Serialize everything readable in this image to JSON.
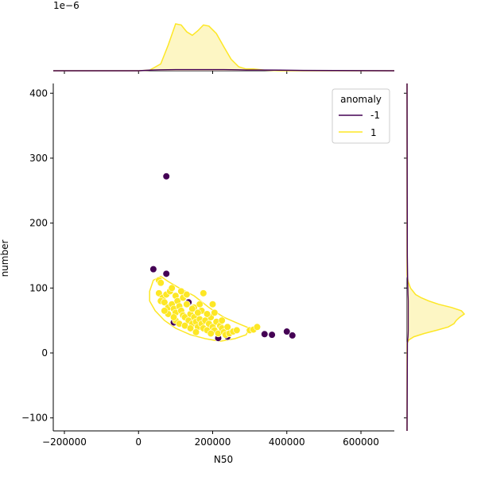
{
  "chart_data": {
    "type": "scatter",
    "xlabel": "N50",
    "ylabel": "number",
    "xlim": [
      -230000,
      690000
    ],
    "ylim": [
      -120,
      415
    ],
    "x_ticks": [
      -200000,
      0,
      200000,
      400000,
      600000
    ],
    "x_tick_labels": [
      "−200000",
      "0",
      "200000",
      "400000",
      "600000"
    ],
    "y_ticks": [
      -100,
      0,
      100,
      200,
      300,
      400
    ],
    "y_tick_labels": [
      "−100",
      "0",
      "100",
      "200",
      "300",
      "400"
    ],
    "top_marginal_scale_label": "1e−6",
    "legend": {
      "title": "anomaly",
      "placement": "top-right",
      "entries": [
        {
          "label": "-1",
          "color": "#440154"
        },
        {
          "label": "1",
          "color": "#fde725"
        }
      ]
    },
    "colors": {
      "anomaly_neg": "#440154",
      "normal": "#fde725",
      "kde_fill": "#fdf6c4"
    },
    "series": [
      {
        "name": "-1",
        "color": "#440154",
        "points": [
          [
            75000,
            272
          ],
          [
            40000,
            129
          ],
          [
            75000,
            122
          ],
          [
            340000,
            29
          ],
          [
            360000,
            28
          ],
          [
            400000,
            33
          ],
          [
            415000,
            27
          ],
          [
            215000,
            23
          ],
          [
            240000,
            25
          ],
          [
            95000,
            47
          ],
          [
            135000,
            78
          ]
        ]
      },
      {
        "name": "1",
        "color": "#fde725",
        "points": [
          [
            55000,
            112
          ],
          [
            60000,
            108
          ],
          [
            55000,
            92
          ],
          [
            65000,
            85
          ],
          [
            60000,
            80
          ],
          [
            70000,
            78
          ],
          [
            75000,
            90
          ],
          [
            80000,
            70
          ],
          [
            85000,
            95
          ],
          [
            90000,
            75
          ],
          [
            95000,
            68
          ],
          [
            100000,
            62
          ],
          [
            100000,
            88
          ],
          [
            105000,
            80
          ],
          [
            110000,
            72
          ],
          [
            115000,
            65
          ],
          [
            120000,
            58
          ],
          [
            120000,
            85
          ],
          [
            125000,
            55
          ],
          [
            130000,
            75
          ],
          [
            135000,
            50
          ],
          [
            140000,
            60
          ],
          [
            145000,
            45
          ],
          [
            150000,
            55
          ],
          [
            150000,
            70
          ],
          [
            155000,
            48
          ],
          [
            160000,
            40
          ],
          [
            165000,
            52
          ],
          [
            170000,
            45
          ],
          [
            170000,
            65
          ],
          [
            175000,
            38
          ],
          [
            175000,
            92
          ],
          [
            180000,
            50
          ],
          [
            185000,
            35
          ],
          [
            190000,
            45
          ],
          [
            195000,
            55
          ],
          [
            200000,
            40
          ],
          [
            200000,
            75
          ],
          [
            205000,
            35
          ],
          [
            210000,
            48
          ],
          [
            215000,
            30
          ],
          [
            220000,
            42
          ],
          [
            225000,
            38
          ],
          [
            230000,
            32
          ],
          [
            235000,
            28
          ],
          [
            240000,
            40
          ],
          [
            245000,
            30
          ],
          [
            255000,
            33
          ],
          [
            265000,
            35
          ],
          [
            300000,
            35
          ],
          [
            310000,
            36
          ],
          [
            320000,
            40
          ],
          [
            80000,
            60
          ],
          [
            90000,
            100
          ],
          [
            100000,
            50
          ],
          [
            110000,
            45
          ],
          [
            125000,
            42
          ],
          [
            140000,
            38
          ],
          [
            155000,
            32
          ],
          [
            160000,
            62
          ],
          [
            185000,
            60
          ],
          [
            195000,
            30
          ],
          [
            130000,
            90
          ],
          [
            70000,
            65
          ],
          [
            95000,
            55
          ],
          [
            115000,
            95
          ],
          [
            165000,
            75
          ],
          [
            205000,
            62
          ],
          [
            225000,
            50
          ],
          [
            145000,
            68
          ]
        ]
      }
    ],
    "density_contour_normal": [
      [
        30000,
        95
      ],
      [
        40000,
        112
      ],
      [
        60000,
        118
      ],
      [
        80000,
        110
      ],
      [
        110000,
        100
      ],
      [
        150000,
        88
      ],
      [
        190000,
        70
      ],
      [
        230000,
        55
      ],
      [
        270000,
        45
      ],
      [
        300000,
        38
      ],
      [
        290000,
        28
      ],
      [
        260000,
        22
      ],
      [
        220000,
        18
      ],
      [
        180000,
        22
      ],
      [
        140000,
        28
      ],
      [
        100000,
        38
      ],
      [
        70000,
        50
      ],
      [
        45000,
        65
      ],
      [
        30000,
        80
      ]
    ],
    "top_marginal": {
      "x": [
        -230000,
        0,
        30000,
        60000,
        80000,
        100000,
        115000,
        130000,
        145000,
        160000,
        175000,
        190000,
        210000,
        230000,
        250000,
        270000,
        290000,
        310000,
        340000,
        380000,
        450000,
        690000
      ],
      "density_normal": [
        0,
        0,
        0.01,
        0.12,
        0.45,
        0.82,
        0.8,
        0.68,
        0.62,
        0.7,
        0.8,
        0.78,
        0.65,
        0.42,
        0.2,
        0.07,
        0.03,
        0.03,
        0.01,
        0,
        0,
        0
      ],
      "density_anomaly": [
        0,
        0,
        0.01,
        0.015,
        0.018,
        0.02,
        0.02,
        0.02,
        0.02,
        0.02,
        0.02,
        0.02,
        0.02,
        0.02,
        0.018,
        0.015,
        0.012,
        0.012,
        0.012,
        0.01,
        0.005,
        0
      ]
    },
    "right_marginal": {
      "y": [
        -120,
        15,
        20,
        25,
        30,
        35,
        40,
        45,
        50,
        55,
        60,
        65,
        70,
        75,
        80,
        85,
        90,
        100,
        110,
        120,
        150,
        415
      ],
      "density_normal": [
        0,
        0,
        0.03,
        0.12,
        0.3,
        0.52,
        0.72,
        0.82,
        0.86,
        0.92,
        1.0,
        0.95,
        0.78,
        0.55,
        0.38,
        0.25,
        0.15,
        0.06,
        0.02,
        0,
        0,
        0
      ],
      "density_anomaly": [
        0,
        0.005,
        0.01,
        0.015,
        0.018,
        0.02,
        0.02,
        0.02,
        0.02,
        0.02,
        0.02,
        0.02,
        0.02,
        0.02,
        0.02,
        0.018,
        0.015,
        0.012,
        0.01,
        0.008,
        0.004,
        0
      ]
    }
  }
}
